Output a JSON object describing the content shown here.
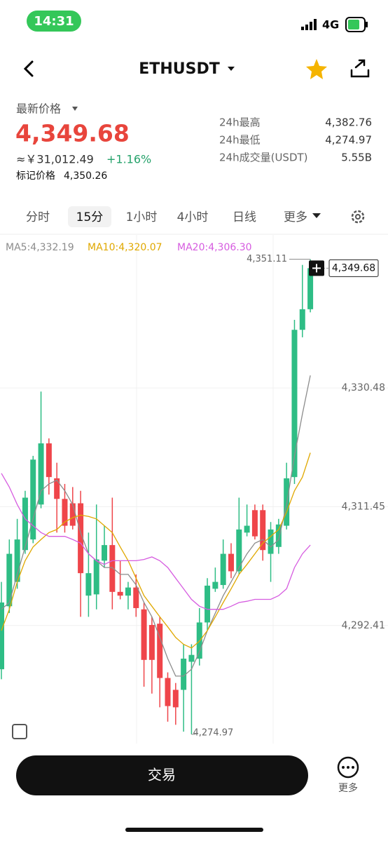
{
  "status_bar": {
    "time": "14:31",
    "network": "4G"
  },
  "header": {
    "symbol": "ETHUSDT"
  },
  "price_panel": {
    "label": "最新价格",
    "price": "4,349.68",
    "cny": "≈￥31,012.49",
    "change": "+1.16%",
    "mark_label": "标记价格",
    "mark_price": "4,350.26"
  },
  "stats": [
    {
      "label": "24h最高",
      "value": "4,382.76"
    },
    {
      "label": "24h最低",
      "value": "4,274.97"
    },
    {
      "label": "24h成交量(USDT)",
      "value": "5.55B"
    }
  ],
  "tabs": [
    "分时",
    "15分",
    "1小时",
    "4小时",
    "日线",
    "更多"
  ],
  "chart_data": {
    "type": "candlestick",
    "up_color": "#2ebd85",
    "down_color": "#ef454a",
    "open": [
      4285.4,
      4295.5,
      4299.4,
      4304.5,
      4306.2,
      4311.8,
      4321.6,
      4316.0,
      4312.7,
      4312.0,
      4312.0,
      4297.2,
      4297.4,
      4302.8,
      4305.3,
      4297.8,
      4297.2,
      4298.5,
      4295.0,
      4292.5,
      4292.7,
      4284.0,
      4282.1,
      4282.1,
      4286.6,
      4287.1,
      4292.9,
      4298.3,
      4298.9,
      4303.9,
      4301.1,
      4307.3,
      4310.9,
      4310.9,
      4303.9,
      4305.0,
      4308.4,
      4316.2,
      4339.8,
      4343.1
    ],
    "high": [
      4299.4,
      4306.2,
      4309.5,
      4314.0,
      4319.6,
      4329.9,
      4322.4,
      4318.5,
      4315.1,
      4314.6,
      4314.0,
      4307.3,
      4311.8,
      4308.4,
      4312.9,
      4302.8,
      4299.4,
      4300.6,
      4296.1,
      4293.8,
      4293.8,
      4284.9,
      4283.2,
      4289.4,
      4289.4,
      4295.2,
      4300.0,
      4301.7,
      4306.2,
      4305.6,
      4312.9,
      4311.8,
      4311.8,
      4311.8,
      4309.0,
      4309.5,
      4318.5,
      4341.4,
      4350.2,
      4351.11
    ],
    "low": [
      4283.8,
      4294.4,
      4298.3,
      4303.9,
      4305.6,
      4311.2,
      4313.4,
      4307.3,
      4307.3,
      4307.8,
      4293.8,
      4293.8,
      4295.0,
      4301.7,
      4295.0,
      4296.6,
      4295.0,
      4293.8,
      4282.6,
      4281.5,
      4279.3,
      4277.0,
      4276.5,
      4275.4,
      4274.97,
      4286.0,
      4291.6,
      4297.8,
      4298.3,
      4300.0,
      4300.6,
      4306.7,
      4306.2,
      4302.8,
      4299.4,
      4303.9,
      4307.8,
      4315.1,
      4338.6,
      4342.6
    ],
    "close": [
      4296.1,
      4303.9,
      4306.2,
      4312.9,
      4319.0,
      4321.6,
      4316.2,
      4312.7,
      4308.4,
      4308.4,
      4300.8,
      4300.8,
      4303.0,
      4305.3,
      4297.8,
      4297.2,
      4298.5,
      4295.2,
      4286.9,
      4286.9,
      4284.0,
      4279.5,
      4279.3,
      4287.1,
      4287.7,
      4292.9,
      4298.8,
      4299.4,
      4303.9,
      4301.1,
      4307.8,
      4308.4,
      4306.7,
      4304.5,
      4307.8,
      4308.6,
      4316.0,
      4339.8,
      4343.1,
      4349.68
    ],
    "series": [
      {
        "name": "MA5:4,332.19",
        "color": "#8c8c8c",
        "values": [
          4295.0,
          4296.1,
          4300.6,
          4305.0,
          4309.5,
          4314.0,
          4315.1,
          4315.7,
          4314.0,
          4311.8,
          4307.3,
          4303.9,
          4302.8,
          4301.7,
          4301.7,
          4300.6,
          4300.6,
          4298.9,
          4296.1,
          4293.8,
          4290.5,
          4287.1,
          4284.3,
          4284.3,
          4285.4,
          4288.2,
          4291.6,
          4294.4,
          4297.2,
          4299.4,
          4301.7,
          4303.9,
          4305.6,
          4306.2,
          4305.0,
          4306.2,
          4311.8,
          4319.6,
          4326.3,
          4332.5
        ]
      },
      {
        "name": "MA10:4,320.07",
        "color": "#e0a800",
        "values": [
          4291.6,
          4295.0,
          4299.4,
          4302.8,
          4305.0,
          4306.2,
          4307.3,
          4307.8,
          4309.0,
          4309.7,
          4310.1,
          4309.9,
          4309.5,
          4308.4,
          4307.3,
          4305.0,
          4302.8,
          4300.0,
          4297.2,
          4295.5,
          4293.8,
          4292.2,
          4290.5,
          4289.4,
          4288.8,
          4289.9,
          4291.6,
          4293.8,
          4296.1,
          4298.3,
          4300.6,
          4302.2,
          4303.9,
          4305.6,
          4306.7,
          4307.8,
          4310.6,
          4314.0,
          4316.2,
          4320.1
        ]
      },
      {
        "name": "MA20:4,306.30",
        "color": "#d65ce0",
        "values": [
          4316.8,
          4314.6,
          4311.8,
          4309.5,
          4308.4,
          4307.3,
          4306.7,
          4306.7,
          4306.7,
          4306.2,
          4305.6,
          4303.9,
          4302.8,
          4302.2,
          4302.8,
          4302.8,
          4302.8,
          4302.8,
          4303.0,
          4303.4,
          4302.8,
          4301.7,
          4300.0,
          4298.3,
          4296.6,
          4295.5,
          4295.0,
          4295.0,
          4295.0,
          4295.5,
          4296.1,
          4296.3,
          4296.6,
          4296.6,
          4296.6,
          4297.2,
          4298.3,
          4301.7,
          4303.9,
          4305.3
        ]
      }
    ],
    "ylim": [
      4273.5,
      4355
    ],
    "yticks": [
      {
        "value": 4292.41,
        "label": "4,292.41"
      },
      {
        "value": 4311.45,
        "label": "4,311.45"
      },
      {
        "value": 4330.48,
        "label": "4,330.48"
      }
    ],
    "grid": true,
    "high_marker": {
      "value": 4351.11,
      "label": "4,351.11"
    },
    "low_marker": {
      "value": 4274.97,
      "label": "4,274.97"
    },
    "last_price": {
      "value": 4349.68,
      "label": "4,349.68"
    }
  },
  "footer": {
    "trade": "交易",
    "more": "更多"
  }
}
